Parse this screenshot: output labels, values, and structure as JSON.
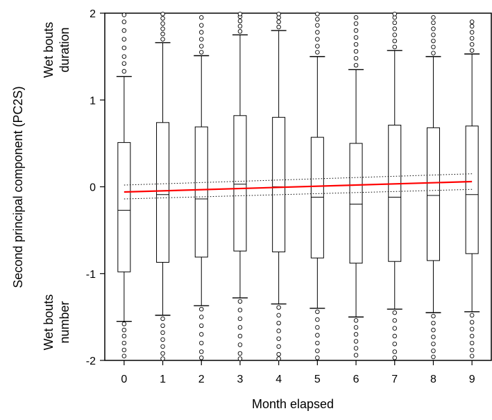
{
  "chart_data": {
    "type": "box",
    "title": "",
    "xlabel": "Month elapsed",
    "ylabel": "Second principal component (PC2S)",
    "ylabel_top": [
      "Wet bouts",
      "duration"
    ],
    "ylabel_bottom": [
      "Wet bouts",
      "number"
    ],
    "ylim": [
      -2,
      2
    ],
    "yticks": [
      -2,
      -1,
      0,
      1,
      2
    ],
    "xlim": [
      -0.5,
      9.5
    ],
    "categories": [
      "0",
      "1",
      "2",
      "3",
      "4",
      "5",
      "6",
      "7",
      "8",
      "9"
    ],
    "boxes": [
      {
        "x": 0,
        "q1": -0.98,
        "median": -0.27,
        "q3": 0.51,
        "whisker_low": -1.55,
        "whisker_high": 1.27,
        "outliers_low": [
          -1.58,
          -1.65,
          -1.72,
          -1.8,
          -1.88,
          -1.95
        ],
        "outliers_high": [
          1.33,
          1.42,
          1.5,
          1.6,
          1.7,
          1.8,
          1.9,
          1.98
        ]
      },
      {
        "x": 1,
        "q1": -0.87,
        "median": -0.09,
        "q3": 0.74,
        "whisker_low": -1.48,
        "whisker_high": 1.66,
        "outliers_low": [
          -1.52,
          -1.6,
          -1.68,
          -1.76,
          -1.84,
          -1.92,
          -1.98
        ],
        "outliers_high": [
          1.7,
          1.76,
          1.82,
          1.88,
          1.94,
          1.99
        ]
      },
      {
        "x": 2,
        "q1": -0.81,
        "median": -0.14,
        "q3": 0.69,
        "whisker_low": -1.37,
        "whisker_high": 1.51,
        "outliers_low": [
          -1.41,
          -1.5,
          -1.6,
          -1.7,
          -1.8,
          -1.9,
          -1.97
        ],
        "outliers_high": [
          1.55,
          1.62,
          1.7,
          1.78,
          1.86,
          1.95
        ]
      },
      {
        "x": 3,
        "q1": -0.74,
        "median": 0.03,
        "q3": 0.82,
        "whisker_low": -1.28,
        "whisker_high": 1.75,
        "outliers_low": [
          -1.32,
          -1.42,
          -1.52,
          -1.62,
          -1.72,
          -1.82,
          -1.92,
          -1.98
        ],
        "outliers_high": [
          1.79,
          1.85,
          1.91,
          1.96,
          1.99
        ]
      },
      {
        "x": 4,
        "q1": -0.75,
        "median": 0.0,
        "q3": 0.8,
        "whisker_low": -1.35,
        "whisker_high": 1.8,
        "outliers_low": [
          -1.39,
          -1.48,
          -1.57,
          -1.66,
          -1.75,
          -1.84,
          -1.93,
          -1.98
        ],
        "outliers_high": [
          1.84,
          1.9,
          1.95,
          1.99
        ]
      },
      {
        "x": 5,
        "q1": -0.82,
        "median": -0.12,
        "q3": 0.57,
        "whisker_low": -1.4,
        "whisker_high": 1.5,
        "outliers_low": [
          -1.44,
          -1.53,
          -1.62,
          -1.71,
          -1.8,
          -1.89,
          -1.97
        ],
        "outliers_high": [
          1.55,
          1.62,
          1.7,
          1.78,
          1.86,
          1.93,
          1.99
        ]
      },
      {
        "x": 6,
        "q1": -0.88,
        "median": -0.2,
        "q3": 0.5,
        "whisker_low": -1.5,
        "whisker_high": 1.35,
        "outliers_low": [
          -1.54,
          -1.62,
          -1.7,
          -1.78,
          -1.86,
          -1.94
        ],
        "outliers_high": [
          1.4,
          1.48,
          1.56,
          1.64,
          1.72,
          1.8,
          1.88,
          1.95
        ]
      },
      {
        "x": 7,
        "q1": -0.86,
        "median": -0.12,
        "q3": 0.71,
        "whisker_low": -1.41,
        "whisker_high": 1.57,
        "outliers_low": [
          -1.45,
          -1.54,
          -1.63,
          -1.72,
          -1.81,
          -1.9,
          -1.97
        ],
        "outliers_high": [
          1.61,
          1.68,
          1.75,
          1.82,
          1.89,
          1.95,
          1.99
        ]
      },
      {
        "x": 8,
        "q1": -0.85,
        "median": -0.1,
        "q3": 0.68,
        "whisker_low": -1.45,
        "whisker_high": 1.5,
        "outliers_low": [
          -1.49,
          -1.57,
          -1.65,
          -1.73,
          -1.81,
          -1.89,
          -1.96
        ],
        "outliers_high": [
          1.54,
          1.61,
          1.68,
          1.75,
          1.82,
          1.89,
          1.95
        ]
      },
      {
        "x": 9,
        "q1": -0.77,
        "median": -0.09,
        "q3": 0.7,
        "whisker_low": -1.44,
        "whisker_high": 1.53,
        "outliers_low": [
          -1.48,
          -1.56,
          -1.64,
          -1.72,
          -1.8,
          -1.88,
          -1.95
        ],
        "outliers_high": [
          1.57,
          1.64,
          1.71,
          1.78,
          1.85,
          1.9
        ]
      }
    ],
    "trend": {
      "color": "#ff0000",
      "x": [
        0,
        9
      ],
      "y": [
        -0.06,
        0.06
      ]
    },
    "confidence_band": {
      "x": [
        0,
        9
      ],
      "upper": [
        0.02,
        0.15
      ],
      "lower": [
        -0.14,
        -0.03
      ]
    }
  }
}
